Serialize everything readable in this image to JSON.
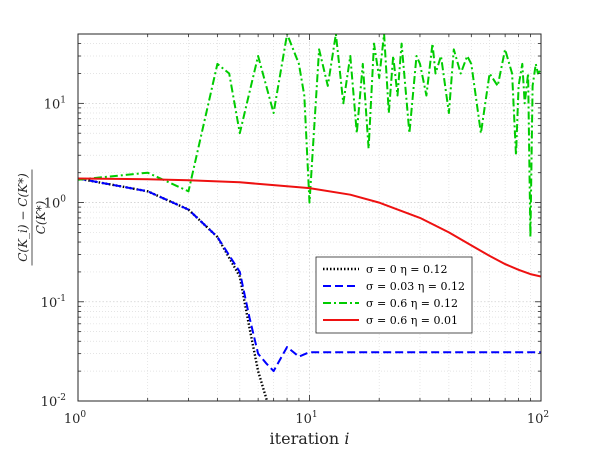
{
  "chart_data": {
    "type": "line",
    "xscale": "log",
    "yscale": "log",
    "xlim": [
      1,
      100
    ],
    "ylim": [
      0.01,
      50
    ],
    "xlabel": "iteration i",
    "ylabel": "C(K_i) − C(K*) / C(K*)",
    "legend_position": "center-right",
    "grid": true,
    "xticks": [
      {
        "value": 1,
        "base": "10",
        "exp": "0"
      },
      {
        "value": 10,
        "base": "10",
        "exp": "1"
      },
      {
        "value": 100,
        "base": "10",
        "exp": "2"
      }
    ],
    "yticks": [
      {
        "value": 0.01,
        "base": "10",
        "exp": "-2"
      },
      {
        "value": 0.1,
        "base": "10",
        "exp": "-1"
      },
      {
        "value": 1,
        "base": "10",
        "exp": "0"
      },
      {
        "value": 10,
        "base": "10",
        "exp": "1"
      }
    ],
    "series": [
      {
        "name": "σ = 0 η = 0.12",
        "color": "#000000",
        "style": "dotted",
        "x": [
          1,
          2,
          3,
          4,
          5,
          5.5,
          6,
          6.6
        ],
        "y": [
          1.75,
          1.3,
          0.85,
          0.45,
          0.18,
          0.055,
          0.02,
          0.0095
        ]
      },
      {
        "name": "σ = 0.03 η = 0.12",
        "color": "#0000ff",
        "style": "dashed",
        "x": [
          1,
          2,
          3,
          4,
          5,
          5.5,
          6,
          6.5,
          7,
          8,
          9,
          10,
          15,
          20,
          30,
          40,
          50,
          60,
          70,
          80,
          90,
          100
        ],
        "y": [
          1.75,
          1.3,
          0.85,
          0.45,
          0.2,
          0.07,
          0.03,
          0.024,
          0.02,
          0.035,
          0.028,
          0.031,
          0.031,
          0.031,
          0.031,
          0.031,
          0.031,
          0.031,
          0.031,
          0.031,
          0.031,
          0.031
        ]
      },
      {
        "name": "σ = 0.6 η = 0.12",
        "color": "#00cc00",
        "style": "dashdot",
        "x": [
          1,
          2,
          3,
          4,
          4.5,
          5,
          6,
          7,
          8,
          9,
          9.5,
          10,
          11,
          12,
          13,
          14,
          15,
          16,
          17,
          18,
          19,
          20,
          21,
          22,
          23,
          24,
          25,
          27,
          29,
          30,
          32,
          34,
          35,
          37,
          40,
          42,
          45,
          48,
          50,
          55,
          60,
          65,
          70,
          75,
          78,
          80,
          83,
          85,
          88,
          90,
          92,
          95,
          97,
          100
        ],
        "y": [
          1.7,
          2.0,
          1.3,
          25,
          20,
          5.0,
          30,
          8.0,
          50,
          25,
          12,
          1.0,
          35,
          15,
          50,
          10,
          30,
          5,
          25,
          3.5,
          40,
          18,
          50,
          8,
          30,
          12,
          40,
          5,
          30,
          25,
          12,
          40,
          20,
          30,
          8,
          35,
          20,
          30,
          25,
          5,
          20,
          15,
          35,
          20,
          3,
          15,
          25,
          10,
          20,
          0.45,
          15,
          25,
          20,
          22
        ]
      },
      {
        "name": "σ = 0.6 η = 0.01",
        "color": "#ee1111",
        "style": "solid",
        "x": [
          1,
          2,
          3,
          5,
          7,
          10,
          15,
          20,
          30,
          40,
          50,
          60,
          70,
          80,
          90,
          100
        ],
        "y": [
          1.75,
          1.72,
          1.68,
          1.6,
          1.5,
          1.4,
          1.2,
          1.0,
          0.7,
          0.5,
          0.37,
          0.29,
          0.24,
          0.21,
          0.19,
          0.18
        ]
      }
    ]
  }
}
